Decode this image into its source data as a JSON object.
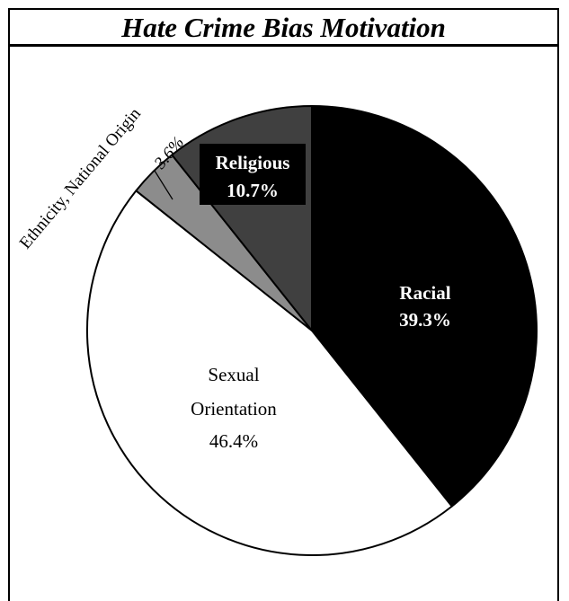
{
  "chart_data": {
    "type": "pie",
    "title": "Hate Crime Bias Motivation",
    "start_angle_deg": 0,
    "direction": "clockwise",
    "slices": [
      {
        "label": "Racial",
        "value": 39.3,
        "display": "39.3%",
        "color": "#000000",
        "label_color": "#ffffff"
      },
      {
        "label": "Sexual Orientation",
        "label_lines": [
          "Sexual",
          "Orientation"
        ],
        "value": 46.4,
        "display": "46.4%",
        "color": "#ffffff",
        "label_color": "#000000"
      },
      {
        "label": "Ethnicity, National Origin",
        "value": 3.6,
        "display": "3.6%",
        "color": "#8c8c8c",
        "label_color": "#000000"
      },
      {
        "label": "Religious",
        "value": 10.7,
        "display": "10.7%",
        "color": "#404040",
        "label_color": "#ffffff"
      }
    ]
  }
}
